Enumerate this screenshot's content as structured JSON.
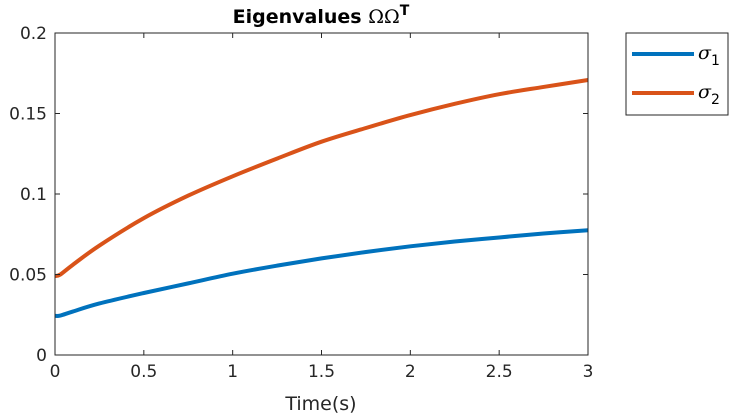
{
  "chart_data": {
    "type": "line",
    "title": "Eigenvalues",
    "title_math": "ΩΩ",
    "title_superscript": "T",
    "xlabel": "Time(s)",
    "ylabel": "",
    "xlim": [
      0,
      3
    ],
    "ylim": [
      0,
      0.2
    ],
    "xticks": [
      0,
      0.5,
      1,
      1.5,
      2,
      2.5,
      3
    ],
    "xtick_labels": [
      "0",
      "0.5",
      "1",
      "1.5",
      "2",
      "2.5",
      "3"
    ],
    "yticks": [
      0,
      0.05,
      0.1,
      0.15,
      0.2
    ],
    "ytick_labels": [
      "0",
      "0.05",
      "0.1",
      "0.15",
      "0.2"
    ],
    "grid": false,
    "legend_position": "outside-top-right",
    "series": [
      {
        "name": "σ",
        "subscript": "1",
        "color": "#0072BD",
        "x": [
          0,
          0.03,
          0.1,
          0.25,
          0.5,
          0.75,
          1,
          1.25,
          1.5,
          1.75,
          2,
          2.25,
          2.5,
          2.75,
          3
        ],
        "y": [
          0.0243,
          0.0245,
          0.027,
          0.032,
          0.0385,
          0.0445,
          0.0505,
          0.0555,
          0.06,
          0.064,
          0.0675,
          0.0705,
          0.073,
          0.0755,
          0.0775
        ]
      },
      {
        "name": "σ",
        "subscript": "2",
        "color": "#D95319",
        "x": [
          0,
          0.03,
          0.1,
          0.25,
          0.5,
          0.75,
          1,
          1.25,
          1.5,
          1.75,
          2,
          2.25,
          2.5,
          2.75,
          3
        ],
        "y": [
          0.049,
          0.05,
          0.056,
          0.068,
          0.085,
          0.099,
          0.111,
          0.122,
          0.1325,
          0.141,
          0.149,
          0.156,
          0.162,
          0.1665,
          0.1708
        ]
      }
    ]
  }
}
